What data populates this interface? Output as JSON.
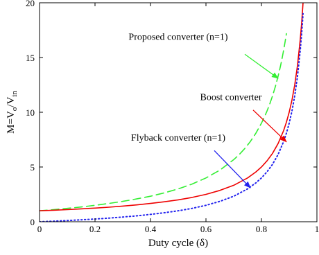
{
  "chart_data": {
    "type": "line",
    "title": "",
    "xlabel": "Duty cycle (δ)",
    "ylabel": {
      "base": "M=V",
      "sub1": "o",
      "mid": "/V",
      "sub2": "in"
    },
    "xlim": [
      0,
      1
    ],
    "ylim": [
      0,
      20
    ],
    "x_ticks": [
      0,
      0.2,
      0.4,
      0.6,
      0.8,
      1
    ],
    "x_tick_labels": [
      "0",
      "0.2",
      "0.4",
      "0.6",
      "0.8",
      "1"
    ],
    "y_ticks": [
      0,
      5,
      10,
      15,
      20
    ],
    "y_tick_labels": [
      "0",
      "5",
      "10",
      "15",
      "20"
    ],
    "grid": false,
    "series": [
      {
        "key": "proposed",
        "color": "#33ee33",
        "dash": "dashed",
        "x": [
          0,
          0.05,
          0.1,
          0.15,
          0.2,
          0.25,
          0.3,
          0.35,
          0.4,
          0.45,
          0.5,
          0.55,
          0.6,
          0.65,
          0.7,
          0.72,
          0.74,
          0.76,
          0.78,
          0.8,
          0.81,
          0.82,
          0.83,
          0.84,
          0.85,
          0.86,
          0.865,
          0.87,
          0.875,
          0.88,
          0.885,
          0.89
        ],
        "y": [
          1,
          1.1,
          1.22,
          1.35,
          1.5,
          1.67,
          1.86,
          2.08,
          2.33,
          2.64,
          3,
          3.44,
          4,
          4.71,
          5.67,
          6.14,
          6.69,
          7.33,
          8.09,
          9,
          9.53,
          10.11,
          10.76,
          11.5,
          12.33,
          13.29,
          13.81,
          14.38,
          15,
          15.67,
          16.39,
          17.18
        ]
      },
      {
        "key": "boost",
        "color": "#ee0000",
        "dash": "solid",
        "x": [
          0,
          0.05,
          0.1,
          0.15,
          0.2,
          0.25,
          0.3,
          0.35,
          0.4,
          0.45,
          0.5,
          0.55,
          0.6,
          0.65,
          0.7,
          0.75,
          0.78,
          0.8,
          0.82,
          0.84,
          0.86,
          0.88,
          0.89,
          0.9,
          0.91,
          0.92,
          0.93,
          0.94,
          0.945,
          0.95
        ],
        "y": [
          1,
          1.05,
          1.11,
          1.18,
          1.25,
          1.33,
          1.43,
          1.54,
          1.67,
          1.82,
          2,
          2.22,
          2.5,
          2.86,
          3.33,
          4,
          4.55,
          5,
          5.56,
          6.25,
          7.14,
          8.33,
          9.09,
          10,
          11.11,
          12.5,
          14.29,
          16.67,
          18.18,
          20
        ]
      },
      {
        "key": "flyback",
        "color": "#2222ee",
        "dash": "dotted",
        "x": [
          0,
          0.05,
          0.1,
          0.15,
          0.2,
          0.25,
          0.3,
          0.35,
          0.4,
          0.45,
          0.5,
          0.55,
          0.6,
          0.65,
          0.7,
          0.75,
          0.78,
          0.8,
          0.82,
          0.84,
          0.86,
          0.88,
          0.89,
          0.9,
          0.91,
          0.92,
          0.93,
          0.94,
          0.945,
          0.95
        ],
        "y": [
          0,
          0.05,
          0.11,
          0.18,
          0.25,
          0.33,
          0.43,
          0.54,
          0.67,
          0.82,
          1,
          1.22,
          1.5,
          1.86,
          2.33,
          3,
          3.55,
          4,
          4.56,
          5.25,
          6.14,
          7.33,
          8.09,
          9,
          10.11,
          11.5,
          13.29,
          15.67,
          17.18,
          19
        ]
      }
    ],
    "annotations": [
      {
        "key": "proposed",
        "text": "Proposed converter (n=1)",
        "color": "#33ee33",
        "label_x": 0.5,
        "label_y": 16.6,
        "arrow_from": [
          0.74,
          15.3
        ],
        "arrow_to": [
          0.86,
          13.1
        ]
      },
      {
        "key": "boost",
        "text": "Boost converter",
        "color": "#ee0000",
        "label_x": 0.69,
        "label_y": 11.1,
        "arrow_from": [
          0.77,
          10.2
        ],
        "arrow_to": [
          0.89,
          7.3
        ]
      },
      {
        "key": "flyback",
        "text": "Flyback converter (n=1)",
        "color": "#2222ee",
        "label_x": 0.5,
        "label_y": 7.4,
        "arrow_from": [
          0.63,
          6.5
        ],
        "arrow_to": [
          0.76,
          3.1
        ]
      }
    ]
  }
}
